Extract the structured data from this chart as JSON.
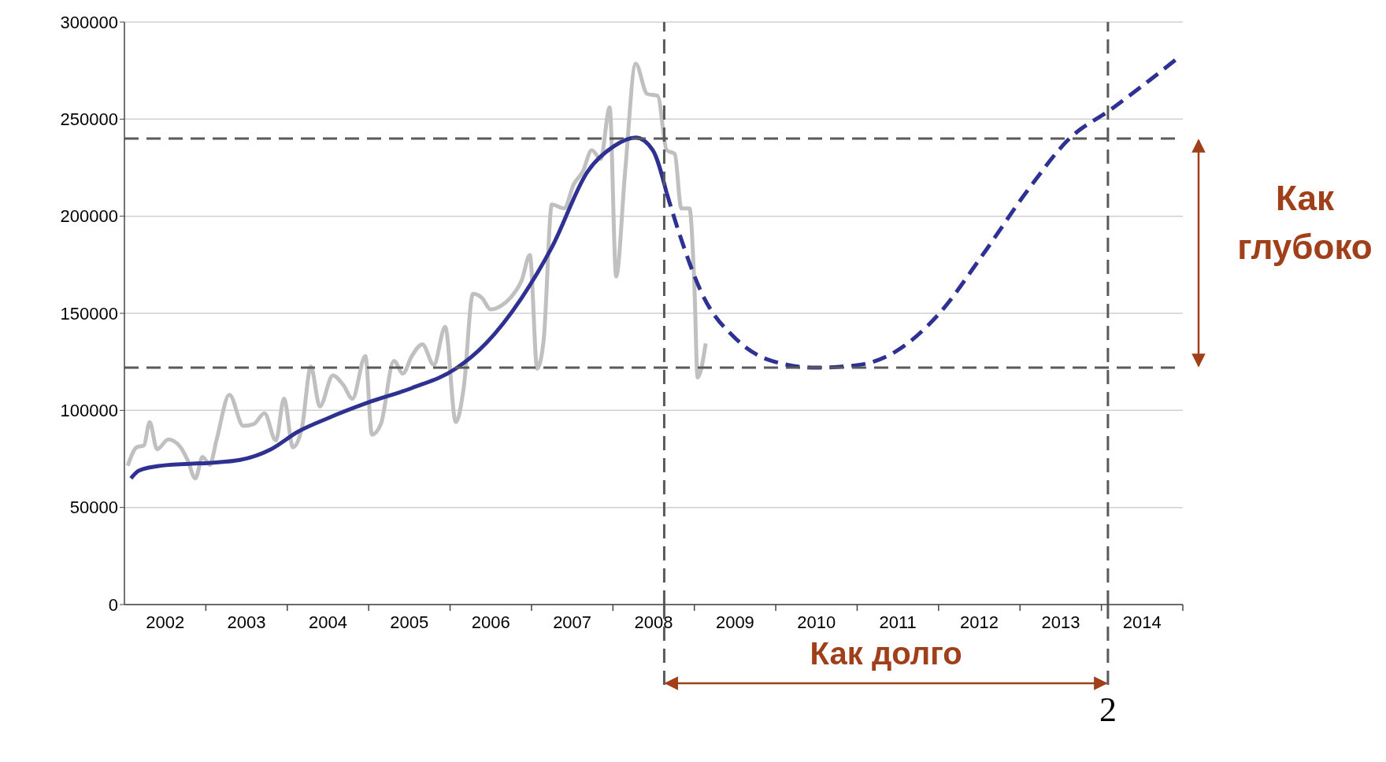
{
  "chart_data": {
    "type": "line",
    "xlim": [
      2002,
      2015
    ],
    "xticks": [
      {
        "value": 2002.5,
        "label": "2002"
      },
      {
        "value": 2003,
        "label": null
      },
      {
        "value": 2003.5,
        "label": "2003"
      },
      {
        "value": 2004,
        "label": null
      },
      {
        "value": 2004.5,
        "label": "2004"
      },
      {
        "value": 2005,
        "label": null
      },
      {
        "value": 2005.5,
        "label": "2005"
      },
      {
        "value": 2006,
        "label": null
      },
      {
        "value": 2006.5,
        "label": "2006"
      },
      {
        "value": 2007,
        "label": null
      },
      {
        "value": 2007.5,
        "label": "2007"
      },
      {
        "value": 2008,
        "label": null
      },
      {
        "value": 2008.5,
        "label": "2008"
      },
      {
        "value": 2009,
        "label": null
      },
      {
        "value": 2009.5,
        "label": "2009"
      },
      {
        "value": 2010,
        "label": null
      },
      {
        "value": 2010.5,
        "label": "2010"
      },
      {
        "value": 2011,
        "label": null
      },
      {
        "value": 2011.5,
        "label": "2011"
      },
      {
        "value": 2012,
        "label": null
      },
      {
        "value": 2012.5,
        "label": "2012"
      },
      {
        "value": 2013,
        "label": null
      },
      {
        "value": 2013.5,
        "label": "2013"
      },
      {
        "value": 2014,
        "label": null
      },
      {
        "value": 2014.5,
        "label": "2014"
      },
      {
        "value": 2015,
        "label": null
      }
    ],
    "ylim": [
      0,
      300000
    ],
    "yticks": [
      0,
      50000,
      100000,
      150000,
      200000,
      250000,
      300000
    ],
    "grid": "y",
    "series": [
      {
        "color": "#c0c0c0",
        "x": [
          2002.04,
          2002.15,
          2002.24,
          2002.31,
          2002.4,
          2002.54,
          2002.69,
          2002.78,
          2002.87,
          2002.96,
          2003.05,
          2003.13,
          2003.29,
          2003.46,
          2003.59,
          2003.72,
          2003.86,
          2003.96,
          2004.07,
          2004.18,
          2004.29,
          2004.4,
          2004.56,
          2004.69,
          2004.8,
          2004.96,
          2005.04,
          2005.15,
          2005.31,
          2005.42,
          2005.53,
          2005.66,
          2005.8,
          2005.94,
          2006.07,
          2006.17,
          2006.28,
          2006.39,
          2006.5,
          2006.63,
          2006.74,
          2006.88,
          2006.98,
          2007.07,
          2007.15,
          2007.25,
          2007.4,
          2007.52,
          2007.63,
          2007.74,
          2007.85,
          2007.96,
          2008.04,
          2008.15,
          2008.28,
          2008.42,
          2008.55,
          2008.66,
          2008.76,
          2008.84,
          2008.94,
          2009.0,
          2009.04,
          2009.14
        ],
        "values": [
          71500,
          81000,
          82000,
          94000,
          80000,
          85000,
          81000,
          74000,
          65000,
          76000,
          72000,
          84500,
          108000,
          92000,
          93000,
          98500,
          84500,
          106000,
          81000,
          91000,
          122500,
          102000,
          118000,
          113000,
          106000,
          128000,
          87500,
          93000,
          125500,
          119000,
          128000,
          134000,
          123500,
          143000,
          94000,
          112500,
          160000,
          158000,
          152000,
          154000,
          158000,
          167000,
          180000,
          121500,
          136500,
          206000,
          204000,
          216500,
          223000,
          234000,
          229500,
          256000,
          169000,
          223000,
          278500,
          263000,
          262000,
          234000,
          232000,
          204000,
          204000,
          165000,
          117000,
          134500
        ]
      },
      {
        "color": "#2e3192",
        "x": [
          2002.08,
          2002.18,
          2002.45,
          2003.05,
          2003.42,
          2003.8,
          2004.13,
          2004.5,
          2004.99,
          2005.53,
          2006.07,
          2006.44,
          2006.88,
          2007.25,
          2007.69,
          2008.01,
          2008.28,
          2008.49,
          2008.66
        ],
        "values": [
          65000,
          69000,
          71500,
          73000,
          74500,
          80000,
          89000,
          96000,
          104000,
          111500,
          121500,
          134500,
          158000,
          184000,
          223000,
          236000,
          240500,
          234000,
          212000
        ]
      },
      {
        "color": "#2e3192",
        "line_style": "dashed",
        "x": [
          2008.66,
          2008.82,
          2009.09,
          2009.52,
          2009.95,
          2010.49,
          2011.03,
          2011.46,
          2012.0,
          2012.54,
          2013.08,
          2013.62,
          2014.1,
          2014.91
        ],
        "values": [
          212000,
          190500,
          160500,
          136500,
          125500,
          122000,
          123500,
          130000,
          149500,
          180000,
          212500,
          240500,
          254500,
          280500
        ]
      }
    ],
    "ref_lines": [
      {
        "axis": "y",
        "value": 240000,
        "color": "#5a5a5a",
        "line_style": "dashed"
      },
      {
        "axis": "y",
        "value": 122000,
        "color": "#5a5a5a",
        "line_style": "dashed"
      },
      {
        "axis": "x",
        "value": 2008.63,
        "color": "#5a5a5a",
        "line_style": "dashed"
      },
      {
        "axis": "x",
        "value": 2014.08,
        "color": "#5a5a5a",
        "line_style": "dashed"
      }
    ],
    "annotations": [
      "Как глубоко",
      "Как долго",
      "2"
    ]
  }
}
